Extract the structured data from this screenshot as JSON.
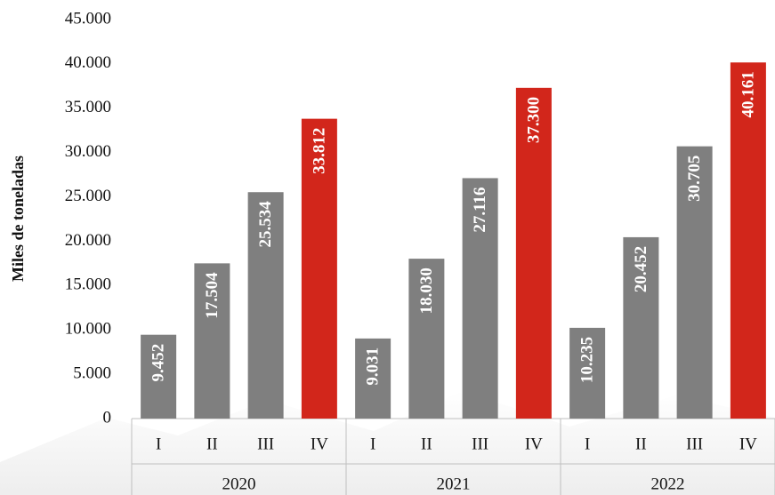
{
  "chart_data": {
    "type": "bar",
    "y_label": "Miles de toneladas",
    "categories": [
      "I",
      "II",
      "III",
      "IV",
      "I",
      "II",
      "III",
      "IV",
      "I",
      "II",
      "III",
      "IV"
    ],
    "groups": [
      "2020",
      "2021",
      "2022"
    ],
    "values": [
      9452,
      17504,
      25534,
      33812,
      9031,
      18030,
      27116,
      37300,
      10235,
      20452,
      30705,
      40161
    ],
    "value_labels": [
      "9.452",
      "17.504",
      "25.534",
      "33.812",
      "9.031",
      "18.030",
      "27.116",
      "37.300",
      "10.235",
      "20.452",
      "30.705",
      "40.161"
    ],
    "colors": [
      "#7f7f7f",
      "#7f7f7f",
      "#7f7f7f",
      "#d2261b",
      "#7f7f7f",
      "#7f7f7f",
      "#7f7f7f",
      "#d2261b",
      "#7f7f7f",
      "#7f7f7f",
      "#7f7f7f",
      "#d2261b"
    ],
    "ylim": [
      0,
      45000
    ],
    "yticks": [
      0,
      {
        "value": 5000,
        "label": "5.000"
      },
      {
        "value": 10000,
        "label": "10.000"
      },
      {
        "value": 15000,
        "label": "15.000"
      },
      {
        "value": 20000,
        "label": "20.000"
      },
      {
        "value": 25000,
        "label": "25.000"
      },
      {
        "value": 30000,
        "label": "30.000"
      },
      {
        "value": 35000,
        "label": "35.000"
      },
      {
        "value": 40000,
        "label": "40.000"
      },
      {
        "value": 45000,
        "label": "45.000"
      }
    ],
    "grid": false
  }
}
